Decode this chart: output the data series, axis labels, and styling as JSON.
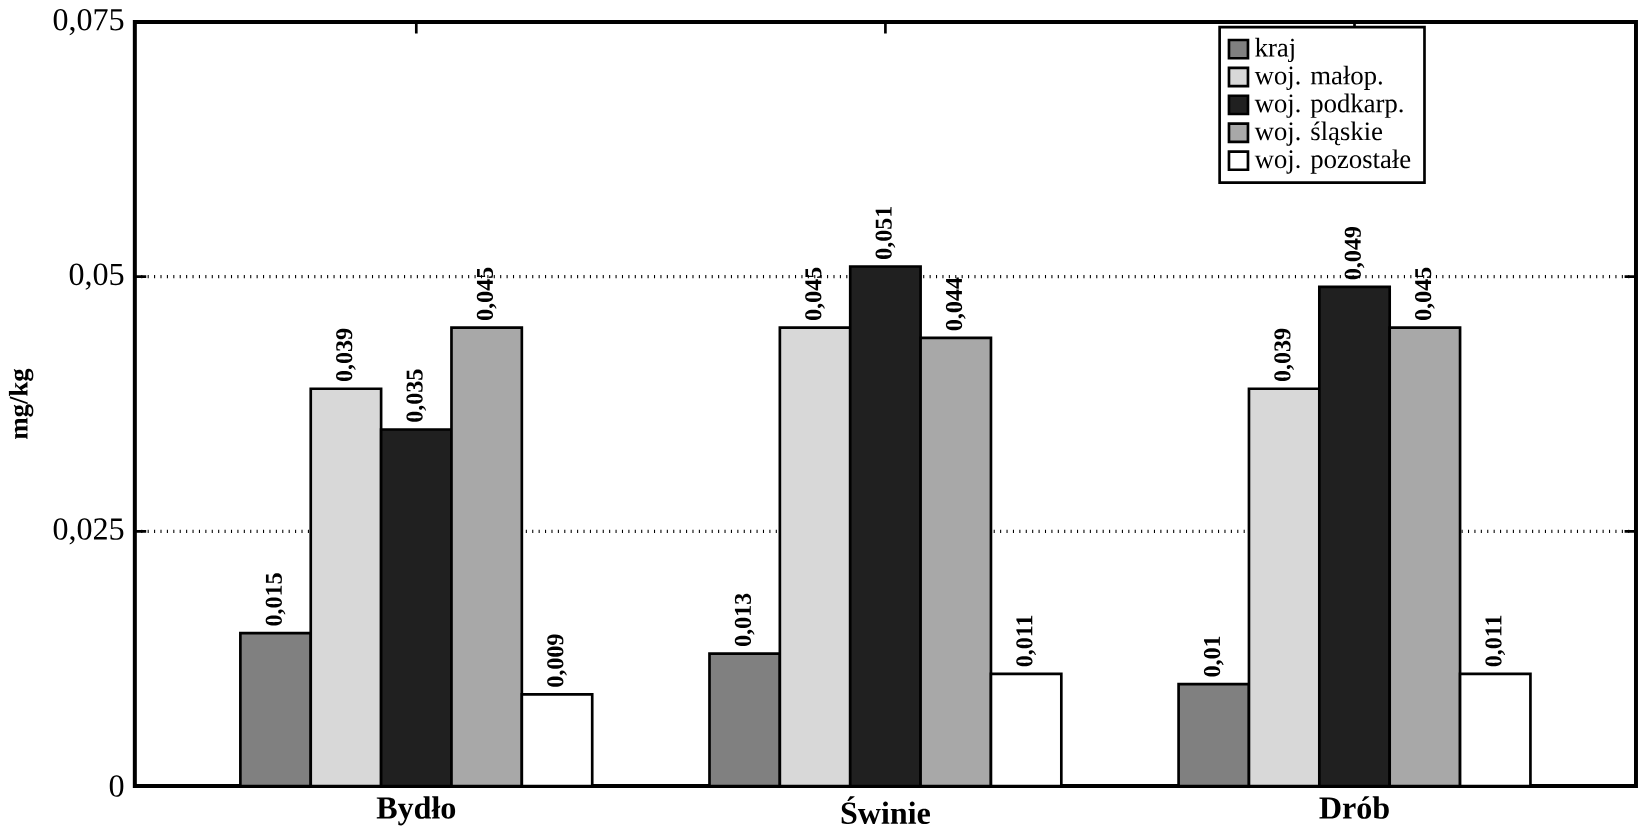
{
  "chart_data": {
    "type": "bar",
    "ylabel": "mg/kg",
    "categories": [
      "Bydło",
      "Świnie",
      "Drób"
    ],
    "series": [
      {
        "name": "kraj",
        "color": "#808080",
        "values": [
          0.015,
          0.013,
          0.01
        ],
        "value_labels": [
          "0,015",
          "0,013",
          "0,01"
        ]
      },
      {
        "name": "woj. małop.",
        "color": "#d8d8d8",
        "values": [
          0.039,
          0.045,
          0.039
        ],
        "value_labels": [
          "0,039",
          "0,045",
          "0,039"
        ]
      },
      {
        "name": "woj. podkarp.",
        "color": "#202020",
        "values": [
          0.035,
          0.051,
          0.049
        ],
        "value_labels": [
          "0,035",
          "0,051",
          "0,049"
        ]
      },
      {
        "name": "woj. śląskie",
        "color": "#a8a8a8",
        "values": [
          0.045,
          0.044,
          0.045
        ],
        "value_labels": [
          "0,045",
          "0,044",
          "0,045"
        ]
      },
      {
        "name": "woj. pozostałe",
        "color": "#ffffff",
        "values": [
          0.009,
          0.011,
          0.011
        ],
        "value_labels": [
          "0,009",
          "0,011",
          "0,011"
        ]
      }
    ],
    "ylim": [
      0,
      0.075
    ],
    "yticks": [
      {
        "value": 0,
        "label": "0"
      },
      {
        "value": 0.025,
        "label": "0,025"
      },
      {
        "value": 0.05,
        "label": "0,05"
      },
      {
        "value": 0.075,
        "label": "0,075"
      }
    ],
    "grid": "y",
    "legend": "top right"
  }
}
